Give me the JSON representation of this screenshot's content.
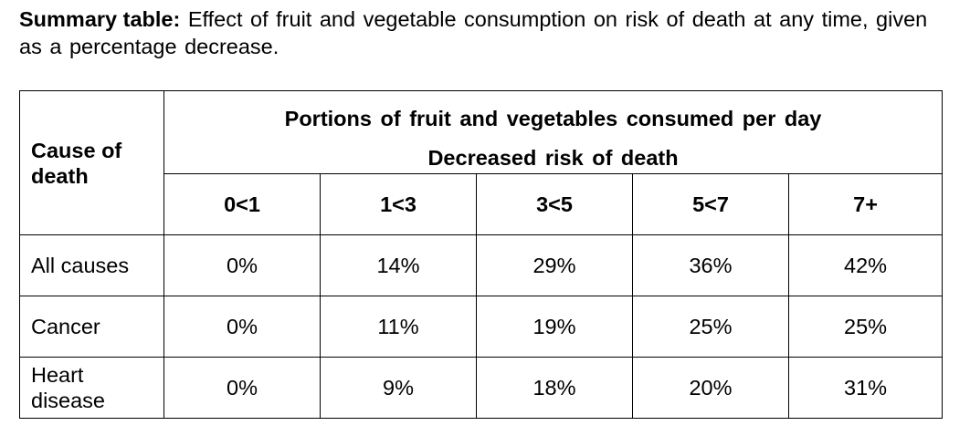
{
  "caption": {
    "lead": "Summary table:",
    "text": "Effect of fruit and vegetable consumption on risk of death at any time, given as a percentage decrease."
  },
  "table": {
    "cause_header_line1": "Cause of",
    "cause_header_line2": "death",
    "portions_header": "Portions of fruit and vegetables consumed per day",
    "risk_header": "Decreased risk of death",
    "ranges": [
      "0<1",
      "1<3",
      "3<5",
      "5<7",
      "7+"
    ],
    "rows": [
      {
        "cause": "All causes",
        "values": [
          "0%",
          "14%",
          "29%",
          "36%",
          "42%"
        ]
      },
      {
        "cause": "Cancer",
        "values": [
          "0%",
          "11%",
          "19%",
          "25%",
          "25%"
        ]
      },
      {
        "cause_line1": "Heart",
        "cause_line2": "disease",
        "values": [
          "0%",
          "9%",
          "18%",
          "20%",
          "31%"
        ]
      }
    ]
  }
}
